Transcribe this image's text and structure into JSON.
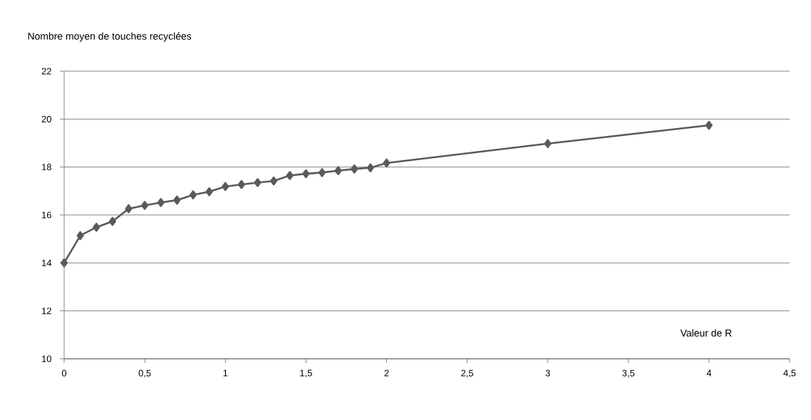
{
  "chart_data": {
    "type": "line",
    "xlabel": "Valeur de R",
    "ylabel": "Nombre moyen de touches recyclées",
    "x": [
      0,
      0.1,
      0.2,
      0.3,
      0.4,
      0.5,
      0.6,
      0.7,
      0.8,
      0.9,
      1,
      1.1,
      1.2,
      1.3,
      1.4,
      1.5,
      1.6,
      1.7,
      1.8,
      1.9,
      2,
      3,
      4
    ],
    "series": [
      {
        "color": "#5a5a5a",
        "values": [
          14.0,
          15.14,
          15.49,
          15.73,
          16.26,
          16.4,
          16.52,
          16.62,
          16.84,
          16.97,
          17.19,
          17.27,
          17.35,
          17.42,
          17.65,
          17.72,
          17.77,
          17.85,
          17.92,
          17.97,
          18.17,
          18.98,
          19.74
        ]
      }
    ],
    "xlim": [
      0,
      4.5
    ],
    "ylim": [
      10,
      22
    ],
    "xticks": [
      0,
      {
        "value": 0.5,
        "label": "0,5"
      },
      1,
      {
        "value": 1.5,
        "label": "1,5"
      },
      2,
      {
        "value": 2.5,
        "label": "2,5"
      },
      3,
      {
        "value": 3.5,
        "label": "3,5"
      },
      4,
      {
        "value": 4.5,
        "label": "4,5"
      }
    ],
    "yticks": [
      10,
      12,
      14,
      16,
      18,
      20,
      22
    ],
    "grid": "y",
    "marker": "diamond",
    "line_style": "solid"
  }
}
